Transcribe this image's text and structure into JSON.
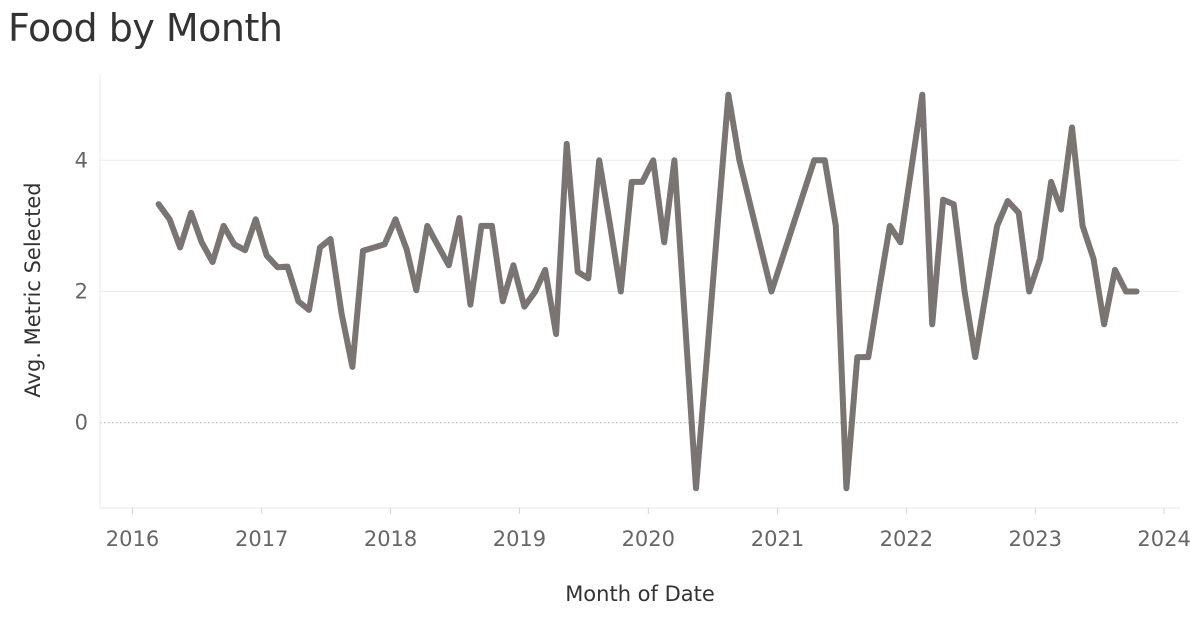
{
  "chart_data": {
    "type": "line",
    "title": "Food by Month",
    "xlabel": "Month of Date",
    "ylabel": "Avg. Metric Selected",
    "xlim": [
      "2015-10-01",
      "2024-02-15"
    ],
    "ylim": [
      -1.3,
      5.3
    ],
    "x_ticks": [
      "2016",
      "2017",
      "2018",
      "2019",
      "2020",
      "2021",
      "2022",
      "2023",
      "2024"
    ],
    "y_ticks": [
      "0",
      "2",
      "4"
    ],
    "line_color": "#7a7473",
    "grid": true,
    "series": [
      {
        "x": [
          "2016-03",
          "2016-04",
          "2016-05",
          "2016-06",
          "2016-07",
          "2016-08",
          "2016-09",
          "2016-10",
          "2016-11",
          "2016-12",
          "2017-01",
          "2017-02",
          "2017-03",
          "2017-04",
          "2017-05",
          "2017-06",
          "2017-07",
          "2017-08",
          "2017-09",
          "2017-10",
          "2017-11",
          "2017-12",
          "2018-01",
          "2018-02",
          "2018-03",
          "2018-04",
          "2018-05",
          "2018-06",
          "2018-07",
          "2018-08",
          "2018-09",
          "2018-10",
          "2018-11",
          "2018-12",
          "2019-01",
          "2019-02",
          "2019-03",
          "2019-04",
          "2019-05",
          "2019-06",
          "2019-07",
          "2019-08",
          "2019-09",
          "2019-10",
          "2019-11",
          "2019-12",
          "2020-01",
          "2020-02",
          "2020-03",
          "2020-05",
          "2020-06",
          "2020-07",
          "2020-08",
          "2020-09",
          "2020-12",
          "2021-04",
          "2021-05",
          "2021-06",
          "2021-07",
          "2021-08",
          "2021-09",
          "2021-10",
          "2021-11",
          "2021-12",
          "2022-02",
          "2022-03",
          "2022-04",
          "2022-05",
          "2022-06",
          "2022-07",
          "2022-08",
          "2022-09",
          "2022-10",
          "2022-11",
          "2022-12",
          "2023-01",
          "2023-02",
          "2023-03",
          "2023-04",
          "2023-05",
          "2023-06",
          "2023-07",
          "2023-08",
          "2023-09",
          "2023-10"
        ],
        "values": [
          3.33,
          3.1,
          2.67,
          3.2,
          2.75,
          2.45,
          3.0,
          2.72,
          2.63,
          3.1,
          2.55,
          2.37,
          2.38,
          1.85,
          1.72,
          2.67,
          2.8,
          1.67,
          0.85,
          2.62,
          2.67,
          2.72,
          3.1,
          2.65,
          2.02,
          3.0,
          2.7,
          2.4,
          3.12,
          1.8,
          3.0,
          3.0,
          1.85,
          2.4,
          1.77,
          2.0,
          2.33,
          1.35,
          4.25,
          2.3,
          2.2,
          4.0,
          3.0,
          2.0,
          3.67,
          3.67,
          4.0,
          2.75,
          4.0,
          -1.0,
          1.0,
          3.0,
          5.0,
          4.0,
          2.0,
          4.0,
          4.0,
          3.0,
          -1.0,
          1.0,
          1.0,
          2.0,
          3.0,
          2.75,
          5.0,
          1.5,
          3.4,
          3.33,
          2.0,
          1.0,
          2.0,
          3.0,
          3.38,
          3.2,
          2.0,
          2.5,
          3.67,
          3.25,
          4.5,
          3.0,
          2.5,
          1.5,
          2.33,
          2.0,
          2.0
        ]
      }
    ]
  }
}
